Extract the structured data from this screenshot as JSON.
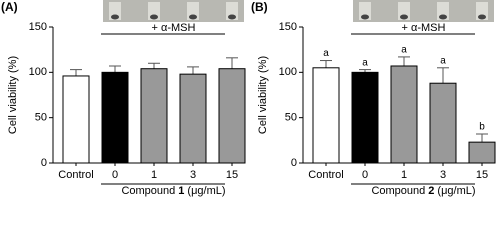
{
  "chart_data": [
    {
      "type": "bar",
      "panel_label": "(A)",
      "ylabel": "Cell viability (%)",
      "annotation": "+ α-MSH",
      "xlabel_parts": [
        "Compound",
        "1",
        "(μg/mL)"
      ],
      "categories": [
        "Control",
        "0",
        "1",
        "3",
        "15"
      ],
      "values": [
        96,
        100,
        104,
        98,
        104
      ],
      "errors": [
        7,
        7,
        6,
        8,
        12
      ],
      "colors": [
        "#ffffff",
        "#000000",
        "#999999",
        "#999999",
        "#999999"
      ],
      "ylim": [
        0,
        150
      ],
      "yticks": [
        0,
        50,
        100,
        150
      ]
    },
    {
      "type": "bar",
      "panel_label": "(B)",
      "ylabel": "Cell viability (%)",
      "annotation": "+ α-MSH",
      "xlabel_parts": [
        "Compound",
        "2",
        "(μg/mL)"
      ],
      "categories": [
        "Control",
        "0",
        "1",
        "3",
        "15"
      ],
      "values": [
        105,
        100,
        107,
        88,
        23
      ],
      "errors": [
        8,
        3,
        10,
        17,
        9
      ],
      "significance_labels": [
        "a",
        "a",
        "a",
        "a",
        "b"
      ],
      "colors": [
        "#ffffff",
        "#000000",
        "#999999",
        "#999999",
        "#999999"
      ],
      "ylim": [
        0,
        150
      ],
      "yticks": [
        0,
        50,
        100,
        150
      ]
    }
  ]
}
